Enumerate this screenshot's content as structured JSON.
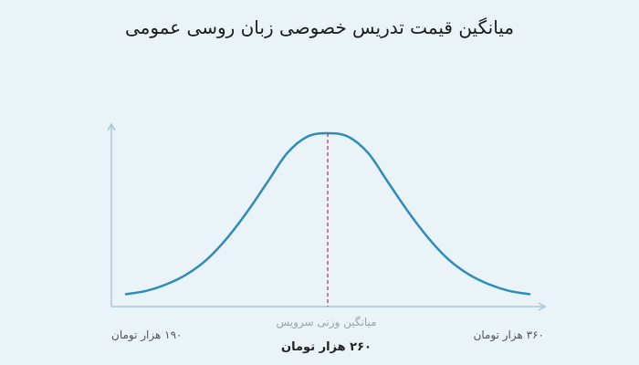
{
  "chart_data": {
    "type": "line",
    "title": "میانگین قیمت تدریس خصوصی زبان روسی عمومی",
    "x_tick_labels": {
      "min": "۱۹۰ هزار تومان",
      "max": "۳۶۰ هزار تومان"
    },
    "average": {
      "caption": "میانگین وزنی سرویس",
      "value_label": "۲۶۰ هزار تومان"
    },
    "curve": {
      "x": [
        0,
        0.05,
        0.1,
        0.15,
        0.2,
        0.25,
        0.3,
        0.35,
        0.4,
        0.45,
        0.5,
        0.55,
        0.6,
        0.65,
        0.7,
        0.75,
        0.8,
        0.85,
        0.9,
        0.95,
        1
      ],
      "y": [
        0.02,
        0.04,
        0.08,
        0.14,
        0.23,
        0.36,
        0.52,
        0.7,
        0.88,
        0.98,
        1.0,
        0.98,
        0.88,
        0.7,
        0.52,
        0.36,
        0.23,
        0.14,
        0.08,
        0.04,
        0.02
      ]
    },
    "grid": false,
    "legend": "none",
    "colors": {
      "curve": "#2d8db8",
      "average_line": "#c0394b",
      "axis": "#a9c6d6",
      "background": "#eaf3f7"
    }
  }
}
